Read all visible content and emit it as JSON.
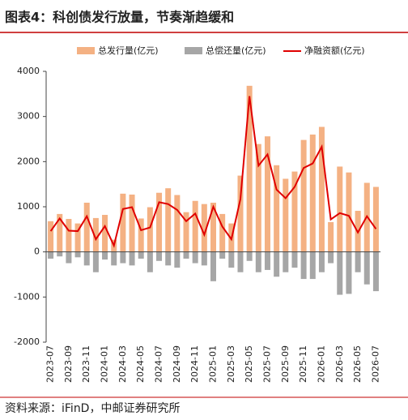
{
  "chart_data": {
    "type": "bar-line",
    "title": "图表4：科创债发行放量，节奏渐趋缓和",
    "source": "资料来源：iFinD，中邮证券研究所",
    "categories": [
      "2023-07",
      null,
      "2023-09",
      null,
      "2023-11",
      null,
      "2024-01",
      null,
      "2024-03",
      null,
      "2024-05",
      null,
      "2024-07",
      null,
      "2024-09",
      null,
      "2024-11",
      null,
      "2025-01",
      null,
      "2025-03",
      null,
      "2025-05",
      null,
      "2025-07",
      null,
      "2025-09",
      null,
      "2025-11",
      null,
      "2026-01",
      null,
      "2026-03",
      null,
      "2026-05",
      null,
      "2026-07"
    ],
    "series": [
      {
        "name": "总发行量(亿元)",
        "color": "#f4b183",
        "kind": "bar",
        "values": [
          680,
          840,
          730,
          630,
          1090,
          750,
          820,
          270,
          1290,
          1270,
          740,
          990,
          1310,
          1410,
          1260,
          880,
          1130,
          1060,
          1090,
          840,
          630,
          1690,
          3680,
          2390,
          2560,
          1920,
          1620,
          1780,
          2480,
          2600,
          2770,
          660,
          1890,
          1760,
          910,
          1530,
          1440
        ]
      },
      {
        "name": "总偿还量(亿元)",
        "color": "#a6a6a6",
        "kind": "bar",
        "values": [
          -150,
          -100,
          -250,
          -120,
          -300,
          -450,
          -170,
          -300,
          -250,
          -300,
          -150,
          -450,
          -200,
          -300,
          -350,
          -150,
          -250,
          -300,
          -650,
          -150,
          -350,
          -450,
          -200,
          -450,
          -400,
          -550,
          -450,
          -350,
          -600,
          -600,
          -450,
          -250,
          -950,
          -930,
          -450,
          -720,
          -870
        ]
      },
      {
        "name": "净融资额(亿元)",
        "color": "#e00000",
        "kind": "line",
        "values": [
          460,
          740,
          470,
          460,
          790,
          280,
          570,
          140,
          950,
          990,
          480,
          540,
          1100,
          1060,
          930,
          680,
          850,
          380,
          1000,
          560,
          280,
          1170,
          3450,
          1910,
          2160,
          1380,
          1190,
          1440,
          1860,
          1960,
          2330,
          720,
          860,
          800,
          430,
          790,
          510
        ]
      }
    ],
    "ylim": [
      -2000,
      4000
    ],
    "yticks": [
      -2000,
      -1000,
      0,
      1000,
      2000,
      3000,
      4000
    ]
  }
}
